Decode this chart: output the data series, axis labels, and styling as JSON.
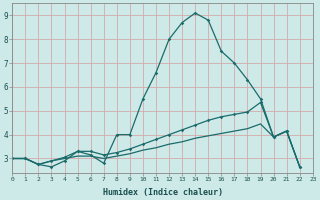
{
  "xlabel": "Humidex (Indice chaleur)",
  "bg_color": "#ceeae8",
  "grid_color": "#b8d4d2",
  "line_color": "#1a6b6b",
  "line1_x": [
    0,
    1,
    2,
    3,
    4,
    5,
    6,
    7,
    8,
    9,
    10,
    11,
    12,
    13,
    14,
    15,
    16,
    17,
    18,
    19,
    20,
    21,
    22
  ],
  "line1_y": [
    3.0,
    3.0,
    2.75,
    2.65,
    2.9,
    3.3,
    3.15,
    2.8,
    4.0,
    4.0,
    5.5,
    6.6,
    8.0,
    8.7,
    9.1,
    8.8,
    7.5,
    7.0,
    6.3,
    5.5,
    3.9,
    4.15,
    2.65
  ],
  "line2_x": [
    0,
    1,
    2,
    3,
    4,
    5,
    6,
    7,
    8,
    9,
    10,
    11,
    12,
    13,
    14,
    15,
    16,
    17,
    18,
    19,
    20,
    21,
    22
  ],
  "line2_y": [
    3.0,
    3.0,
    2.75,
    2.9,
    3.05,
    3.3,
    3.3,
    3.15,
    3.25,
    3.4,
    3.6,
    3.8,
    4.0,
    4.2,
    4.4,
    4.6,
    4.75,
    4.85,
    4.95,
    5.35,
    3.9,
    4.15,
    2.65
  ],
  "line3_x": [
    0,
    1,
    2,
    3,
    4,
    5,
    6,
    7,
    8,
    9,
    10,
    11,
    12,
    13,
    14,
    15,
    16,
    17,
    18,
    19,
    20,
    21,
    22
  ],
  "line3_y": [
    3.0,
    3.0,
    2.75,
    2.9,
    3.0,
    3.1,
    3.1,
    3.0,
    3.1,
    3.2,
    3.35,
    3.45,
    3.6,
    3.7,
    3.85,
    3.95,
    4.05,
    4.15,
    4.25,
    4.45,
    3.9,
    4.15,
    2.65
  ],
  "xlim": [
    0,
    23
  ],
  "ylim": [
    2.4,
    9.5
  ],
  "yticks": [
    3,
    4,
    5,
    6,
    7,
    8,
    9
  ],
  "xticks": [
    0,
    1,
    2,
    3,
    4,
    5,
    6,
    7,
    8,
    9,
    10,
    11,
    12,
    13,
    14,
    15,
    16,
    17,
    18,
    19,
    20,
    21,
    22,
    23
  ]
}
